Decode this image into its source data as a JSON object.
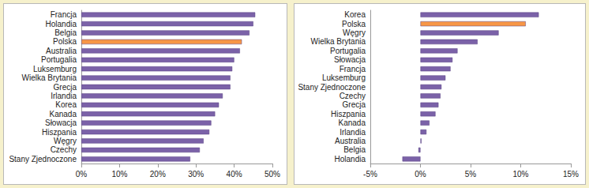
{
  "chart_data": [
    {
      "type": "bar",
      "orientation": "horizontal",
      "grid": false,
      "categories": [
        "Francja",
        "Holandia",
        "Belgia",
        "Polska",
        "Australia",
        "Portugalia",
        "Luksemburg",
        "Wielka Brytania",
        "Grecja",
        "Irlandia",
        "Korea",
        "Kanada",
        "Słowacja",
        "Hiszpania",
        "Węgry",
        "Czechy",
        "Stany Zjednoczone"
      ],
      "values": [
        45.5,
        45,
        44,
        42,
        41.5,
        40,
        39.5,
        39,
        39,
        37,
        36,
        35,
        34,
        33.5,
        32,
        31,
        28.5
      ],
      "colors": [
        "#7b62a8",
        "#7b62a8",
        "#7b62a8",
        "#f79646",
        "#7b62a8",
        "#7b62a8",
        "#7b62a8",
        "#7b62a8",
        "#7b62a8",
        "#7b62a8",
        "#7b62a8",
        "#7b62a8",
        "#7b62a8",
        "#7b62a8",
        "#7b62a8",
        "#7b62a8",
        "#7b62a8"
      ],
      "xlim": [
        0,
        50
      ],
      "xticks": [
        {
          "value": 0,
          "label": "0%"
        },
        {
          "value": 10,
          "label": "10%"
        },
        {
          "value": 20,
          "label": "20%"
        },
        {
          "value": 30,
          "label": "30%"
        },
        {
          "value": 40,
          "label": "40%"
        },
        {
          "value": 50,
          "label": "50%"
        }
      ]
    },
    {
      "type": "bar",
      "orientation": "horizontal",
      "grid": false,
      "categories": [
        "Korea",
        "Polska",
        "Węgry",
        "Wielka Brytania",
        "Portugalia",
        "Słowacja",
        "Francja",
        "Luksemburg",
        "Stany Zjednoczone",
        "Czechy",
        "Grecja",
        "Hiszpania",
        "Kanada",
        "Irlandia",
        "Australia",
        "Belgia",
        "Holandia"
      ],
      "values": [
        11.8,
        10.5,
        7.8,
        5.7,
        3.7,
        3.2,
        3.0,
        2.5,
        2.1,
        2.0,
        1.8,
        1.5,
        0.9,
        0.6,
        0.1,
        -0.2,
        -1.8
      ],
      "colors": [
        "#7b62a8",
        "#f79646",
        "#7b62a8",
        "#7b62a8",
        "#7b62a8",
        "#7b62a8",
        "#7b62a8",
        "#7b62a8",
        "#7b62a8",
        "#7b62a8",
        "#7b62a8",
        "#7b62a8",
        "#7b62a8",
        "#7b62a8",
        "#7b62a8",
        "#7b62a8",
        "#7b62a8"
      ],
      "xlim": [
        -5,
        15
      ],
      "xticks": [
        {
          "value": -5,
          "label": "-5%"
        },
        {
          "value": 0,
          "label": "0%"
        },
        {
          "value": 5,
          "label": "5%"
        },
        {
          "value": 10,
          "label": "10%"
        },
        {
          "value": 15,
          "label": "15%"
        }
      ]
    }
  ]
}
